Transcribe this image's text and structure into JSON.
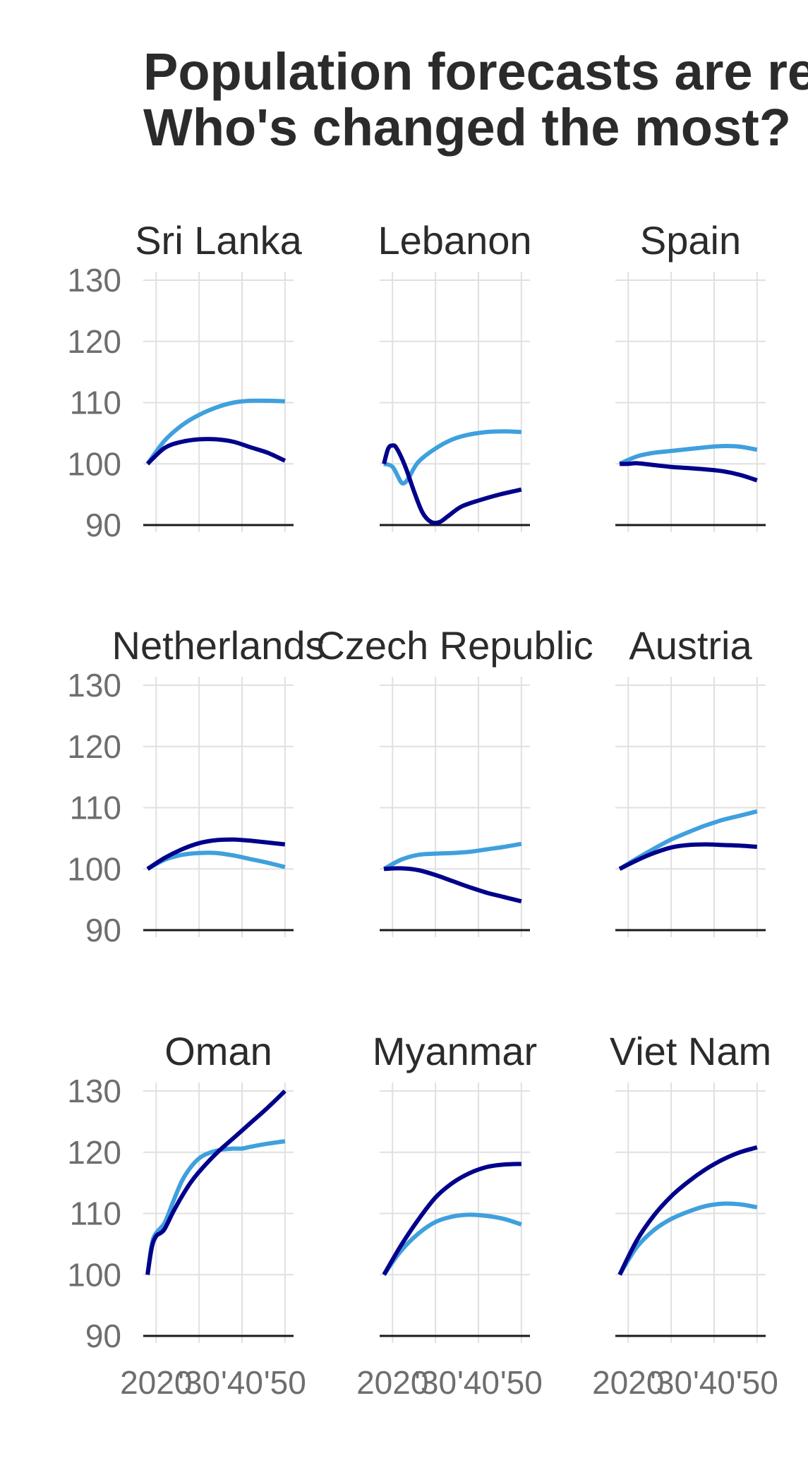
{
  "title_lines": [
    "Population forecasts are re",
    "Who's changed the most?"
  ],
  "chart_data": {
    "type": "line",
    "layout": "facet-grid 3x3",
    "xlim": [
      2017,
      2052
    ],
    "x_ticks": [
      2020,
      2030,
      2040,
      2050
    ],
    "x_tick_labels": [
      "2020",
      "'30",
      "'40",
      "'50"
    ],
    "ylim": [
      90,
      130
    ],
    "y_ticks": [
      90,
      100,
      110,
      120,
      130
    ],
    "series_colors": [
      "#3fa0dd",
      "#00008b"
    ],
    "panels": [
      {
        "name": "Sri Lanka",
        "series": [
          {
            "color": "#3fa0dd",
            "x": [
              2018,
              2022,
              2026,
              2030,
              2034,
              2038,
              2042,
              2046,
              2050
            ],
            "y": [
              100,
              103.8,
              106.3,
              108,
              109.2,
              110,
              110.3,
              110.3,
              110.2
            ]
          },
          {
            "color": "#00008b",
            "x": [
              2018,
              2022,
              2026,
              2030,
              2034,
              2038,
              2042,
              2046,
              2050
            ],
            "y": [
              100,
              102.6,
              103.6,
              104,
              104,
              103.6,
              102.7,
              101.8,
              100.5
            ]
          }
        ]
      },
      {
        "name": "Lebanon",
        "series": [
          {
            "color": "#3fa0dd",
            "x": [
              2018,
              2020,
              2022,
              2023,
              2024,
              2026,
              2030,
              2034,
              2038,
              2042,
              2046,
              2050
            ],
            "y": [
              100,
              99.5,
              97,
              97,
              98,
              100.3,
              102.5,
              104,
              104.8,
              105.2,
              105.3,
              105.2
            ]
          },
          {
            "color": "#00008b",
            "x": [
              2018,
              2019,
              2020,
              2021,
              2023,
              2025,
              2027,
              2029,
              2031,
              2033,
              2036,
              2040,
              2045,
              2050
            ],
            "y": [
              100,
              102.5,
              103,
              102.5,
              99.5,
              95.5,
              92,
              90.5,
              90.5,
              91.5,
              93,
              94,
              95,
              95.8
            ]
          }
        ]
      },
      {
        "name": "Spain",
        "series": [
          {
            "color": "#3fa0dd",
            "x": [
              2018,
              2022,
              2026,
              2030,
              2034,
              2038,
              2042,
              2046,
              2050
            ],
            "y": [
              100,
              101.2,
              101.8,
              102.1,
              102.4,
              102.7,
              102.9,
              102.8,
              102.3
            ]
          },
          {
            "color": "#00008b",
            "x": [
              2018,
              2020,
              2022,
              2026,
              2030,
              2034,
              2038,
              2042,
              2046,
              2050
            ],
            "y": [
              100,
              100,
              100.1,
              99.8,
              99.5,
              99.3,
              99.1,
              98.8,
              98.2,
              97.3
            ]
          }
        ]
      },
      {
        "name": "Netherlands",
        "series": [
          {
            "color": "#3fa0dd",
            "x": [
              2018,
              2022,
              2026,
              2030,
              2034,
              2038,
              2042,
              2046,
              2050
            ],
            "y": [
              100,
              101.5,
              102.3,
              102.6,
              102.6,
              102.2,
              101.6,
              101,
              100.3
            ]
          },
          {
            "color": "#00008b",
            "x": [
              2018,
              2022,
              2026,
              2030,
              2034,
              2038,
              2042,
              2046,
              2050
            ],
            "y": [
              100,
              101.8,
              103.2,
              104.2,
              104.7,
              104.8,
              104.6,
              104.3,
              104
            ]
          }
        ]
      },
      {
        "name": "Czech Republic",
        "series": [
          {
            "color": "#3fa0dd",
            "x": [
              2018,
              2022,
              2026,
              2030,
              2034,
              2038,
              2042,
              2046,
              2050
            ],
            "y": [
              100,
              101.5,
              102.3,
              102.5,
              102.6,
              102.8,
              103.2,
              103.6,
              104.1
            ]
          },
          {
            "color": "#00008b",
            "x": [
              2018,
              2022,
              2026,
              2030,
              2034,
              2038,
              2042,
              2046,
              2050
            ],
            "y": [
              100,
              100.1,
              99.8,
              99,
              98,
              97,
              96.1,
              95.4,
              94.7
            ]
          }
        ]
      },
      {
        "name": "Austria",
        "series": [
          {
            "color": "#3fa0dd",
            "x": [
              2018,
              2022,
              2026,
              2030,
              2034,
              2038,
              2042,
              2046,
              2050
            ],
            "y": [
              100,
              101.7,
              103.3,
              104.8,
              106,
              107.1,
              108,
              108.7,
              109.4
            ]
          },
          {
            "color": "#00008b",
            "x": [
              2018,
              2022,
              2026,
              2030,
              2034,
              2038,
              2042,
              2046,
              2050
            ],
            "y": [
              100,
              101.4,
              102.6,
              103.5,
              103.9,
              104,
              103.9,
              103.8,
              103.6
            ]
          }
        ]
      },
      {
        "name": "Oman",
        "series": [
          {
            "color": "#3fa0dd",
            "x": [
              2018,
              2019,
              2020,
              2022,
              2024,
              2026,
              2028,
              2030,
              2032,
              2035,
              2038,
              2040,
              2042,
              2046,
              2050
            ],
            "y": [
              100,
              105,
              106.8,
              108.5,
              112,
              115.3,
              117.5,
              119,
              119.8,
              120.4,
              120.6,
              120.6,
              120.9,
              121.4,
              121.8
            ]
          },
          {
            "color": "#00008b",
            "x": [
              2018,
              2019,
              2020,
              2021,
              2022,
              2024,
              2026,
              2028,
              2030,
              2034,
              2038,
              2042,
              2046,
              2050
            ],
            "y": [
              100,
              104.5,
              106.3,
              106.8,
              107.5,
              110.3,
              112.8,
              115,
              116.8,
              119.8,
              122.3,
              124.8,
              127.3,
              130
            ]
          }
        ]
      },
      {
        "name": "Myanmar",
        "series": [
          {
            "color": "#3fa0dd",
            "x": [
              2018,
              2022,
              2026,
              2030,
              2034,
              2038,
              2042,
              2046,
              2050
            ],
            "y": [
              100,
              103.9,
              106.7,
              108.6,
              109.5,
              109.8,
              109.6,
              109.1,
              108.2
            ]
          },
          {
            "color": "#00008b",
            "x": [
              2018,
              2022,
              2026,
              2030,
              2034,
              2038,
              2042,
              2046,
              2050
            ],
            "y": [
              100,
              104.8,
              109,
              112.6,
              115,
              116.6,
              117.6,
              118,
              118.1
            ]
          }
        ]
      },
      {
        "name": "Viet Nam",
        "series": [
          {
            "color": "#3fa0dd",
            "x": [
              2018,
              2022,
              2026,
              2030,
              2034,
              2038,
              2042,
              2046,
              2050
            ],
            "y": [
              100,
              104.5,
              107.3,
              109.1,
              110.3,
              111.2,
              111.6,
              111.5,
              111
            ]
          },
          {
            "color": "#00008b",
            "x": [
              2018,
              2022,
              2026,
              2030,
              2034,
              2038,
              2042,
              2046,
              2050
            ],
            "y": [
              100,
              105.6,
              109.7,
              112.8,
              115.2,
              117.2,
              118.8,
              120,
              120.8
            ]
          }
        ]
      }
    ]
  }
}
